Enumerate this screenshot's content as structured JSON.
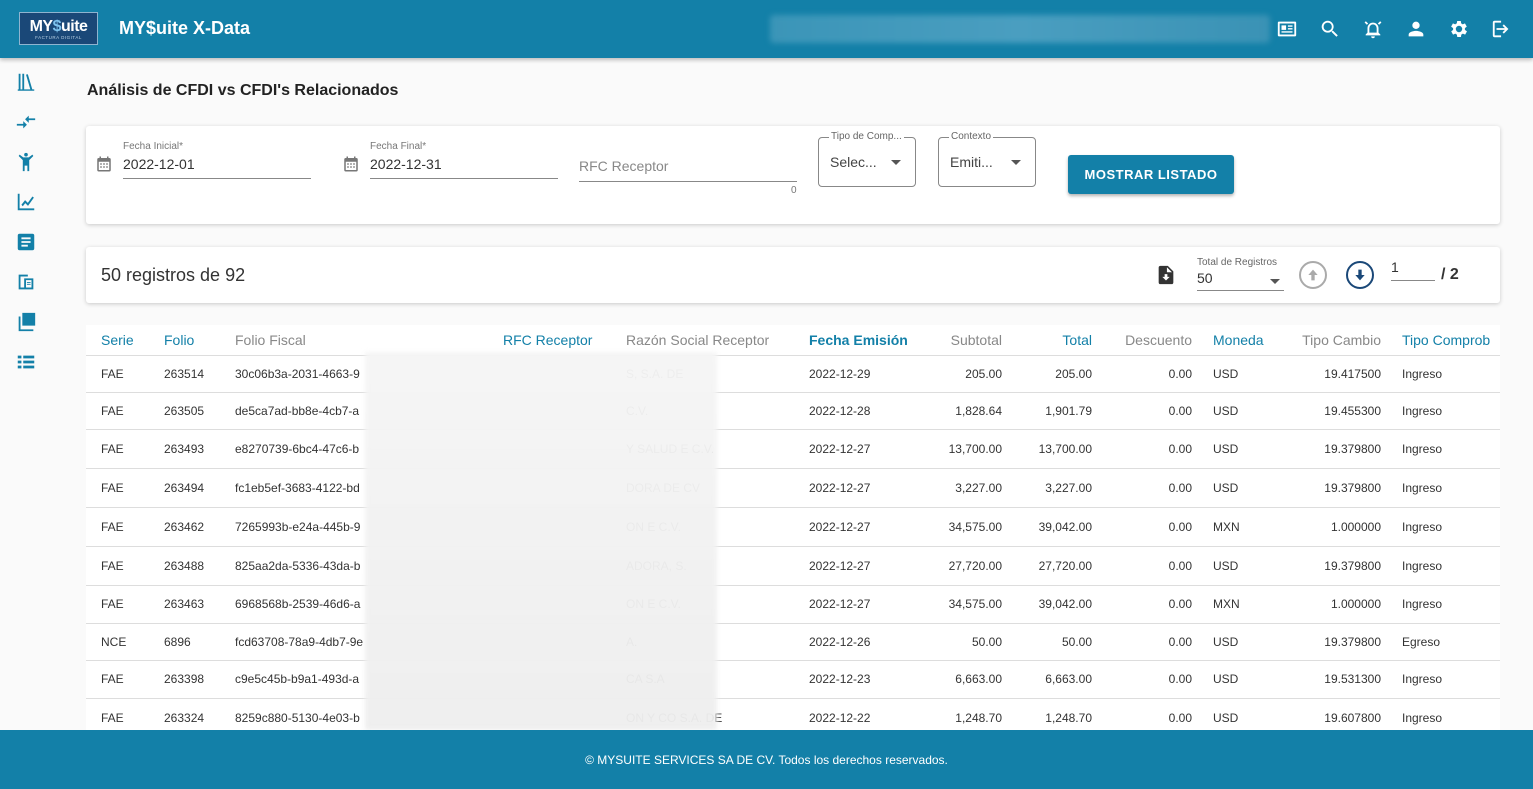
{
  "header": {
    "logo_text_a": "MY",
    "logo_text_dollar": "$",
    "logo_text_b": "uite",
    "logo_sub": "FACTURA DIGITAL",
    "app_title": "MY$uite X-Data",
    "icons": [
      "news-icon",
      "search-icon",
      "alarm-icon",
      "user-icon",
      "settings-icon",
      "logout-icon"
    ]
  },
  "sidebar": {
    "items": [
      "library-icon",
      "compare-arrows-icon",
      "person-icon",
      "chart-line-icon",
      "article-icon",
      "document-sync-icon",
      "collections-icon",
      "list-icon"
    ]
  },
  "page": {
    "title": "Análisis de CFDI vs CFDI's Relacionados"
  },
  "filters": {
    "fecha_inicial_label": "Fecha Inicial*",
    "fecha_inicial_value": "2022-12-01",
    "fecha_final_label": "Fecha Final*",
    "fecha_final_value": "2022-12-31",
    "rfc_placeholder": "RFC Receptor",
    "rfc_counter": "0",
    "tipo_label": "Tipo de Comp...",
    "tipo_value": "Selec...",
    "contexto_label": "Contexto",
    "contexto_value": "Emiti...",
    "button_label": "MOSTRAR LISTADO"
  },
  "records": {
    "summary": "50 registros de 92",
    "total_label": "Total de Registros",
    "total_value": "50",
    "page_value": "1",
    "page_total": "/ 2"
  },
  "table": {
    "columns": [
      "Serie",
      "Folio",
      "Folio Fiscal",
      "RFC Receptor",
      "Razón Social Receptor",
      "Fecha Emisión",
      "Subtotal",
      "Total",
      "Descuento",
      "Moneda",
      "Tipo Cambio",
      "Tipo Comprob"
    ],
    "rows": [
      {
        "serie": "FAE",
        "folio": "263514",
        "folio_fiscal": "30c06b3a-2031-4663-9",
        "rfc": "",
        "razon": "S, S.A. DE",
        "fecha": "2022-12-29",
        "subtotal": "205.00",
        "total": "205.00",
        "descuento": "0.00",
        "moneda": "USD",
        "tipo_cambio": "19.417500",
        "tipo_comp": "Ingreso"
      },
      {
        "serie": "FAE",
        "folio": "263505",
        "folio_fiscal": "de5ca7ad-bb8e-4cb7-a",
        "rfc": "",
        "razon": "C.V.",
        "fecha": "2022-12-28",
        "subtotal": "1,828.64",
        "total": "1,901.79",
        "descuento": "0.00",
        "moneda": "USD",
        "tipo_cambio": "19.455300",
        "tipo_comp": "Ingreso"
      },
      {
        "serie": "FAE",
        "folio": "263493",
        "folio_fiscal": "e8270739-6bc4-47c6-b",
        "rfc": "",
        "razon": "Y SALUD E C.V.",
        "fecha": "2022-12-27",
        "subtotal": "13,700.00",
        "total": "13,700.00",
        "descuento": "0.00",
        "moneda": "USD",
        "tipo_cambio": "19.379800",
        "tipo_comp": "Ingreso"
      },
      {
        "serie": "FAE",
        "folio": "263494",
        "folio_fiscal": "fc1eb5ef-3683-4122-bd",
        "rfc": "",
        "razon": "DORA DE CV",
        "fecha": "2022-12-27",
        "subtotal": "3,227.00",
        "total": "3,227.00",
        "descuento": "0.00",
        "moneda": "USD",
        "tipo_cambio": "19.379800",
        "tipo_comp": "Ingreso"
      },
      {
        "serie": "FAE",
        "folio": "263462",
        "folio_fiscal": "7265993b-e24a-445b-9",
        "rfc": "",
        "razon": "ON E C.V.",
        "fecha": "2022-12-27",
        "subtotal": "34,575.00",
        "total": "39,042.00",
        "descuento": "0.00",
        "moneda": "MXN",
        "tipo_cambio": "1.000000",
        "tipo_comp": "Ingreso"
      },
      {
        "serie": "FAE",
        "folio": "263488",
        "folio_fiscal": "825aa2da-5336-43da-b",
        "rfc": "",
        "razon": "ADORA, S.",
        "fecha": "2022-12-27",
        "subtotal": "27,720.00",
        "total": "27,720.00",
        "descuento": "0.00",
        "moneda": "USD",
        "tipo_cambio": "19.379800",
        "tipo_comp": "Ingreso"
      },
      {
        "serie": "FAE",
        "folio": "263463",
        "folio_fiscal": "6968568b-2539-46d6-a",
        "rfc": "",
        "razon": "ON E C.V.",
        "fecha": "2022-12-27",
        "subtotal": "34,575.00",
        "total": "39,042.00",
        "descuento": "0.00",
        "moneda": "MXN",
        "tipo_cambio": "1.000000",
        "tipo_comp": "Ingreso"
      },
      {
        "serie": "NCE",
        "folio": "6896",
        "folio_fiscal": "fcd63708-78a9-4db7-9e",
        "rfc": "",
        "razon": "A.",
        "fecha": "2022-12-26",
        "subtotal": "50.00",
        "total": "50.00",
        "descuento": "0.00",
        "moneda": "USD",
        "tipo_cambio": "19.379800",
        "tipo_comp": "Egreso"
      },
      {
        "serie": "FAE",
        "folio": "263398",
        "folio_fiscal": "c9e5c45b-b9a1-493d-a",
        "rfc": "",
        "razon": "CA S.A",
        "fecha": "2022-12-23",
        "subtotal": "6,663.00",
        "total": "6,663.00",
        "descuento": "0.00",
        "moneda": "USD",
        "tipo_cambio": "19.531300",
        "tipo_comp": "Ingreso"
      },
      {
        "serie": "FAE",
        "folio": "263324",
        "folio_fiscal": "8259c880-5130-4e03-b",
        "rfc": "",
        "razon": "ON Y CO S.A. DE",
        "fecha": "2022-12-22",
        "subtotal": "1,248.70",
        "total": "1,248.70",
        "descuento": "0.00",
        "moneda": "USD",
        "tipo_cambio": "19.607800",
        "tipo_comp": "Ingreso"
      }
    ]
  },
  "footer": {
    "text": "© MYSUITE SERVICES SA DE CV. Todos los derechos reservados."
  },
  "colors": {
    "brand": "#1380a8",
    "logo_bg": "#1a4878"
  }
}
